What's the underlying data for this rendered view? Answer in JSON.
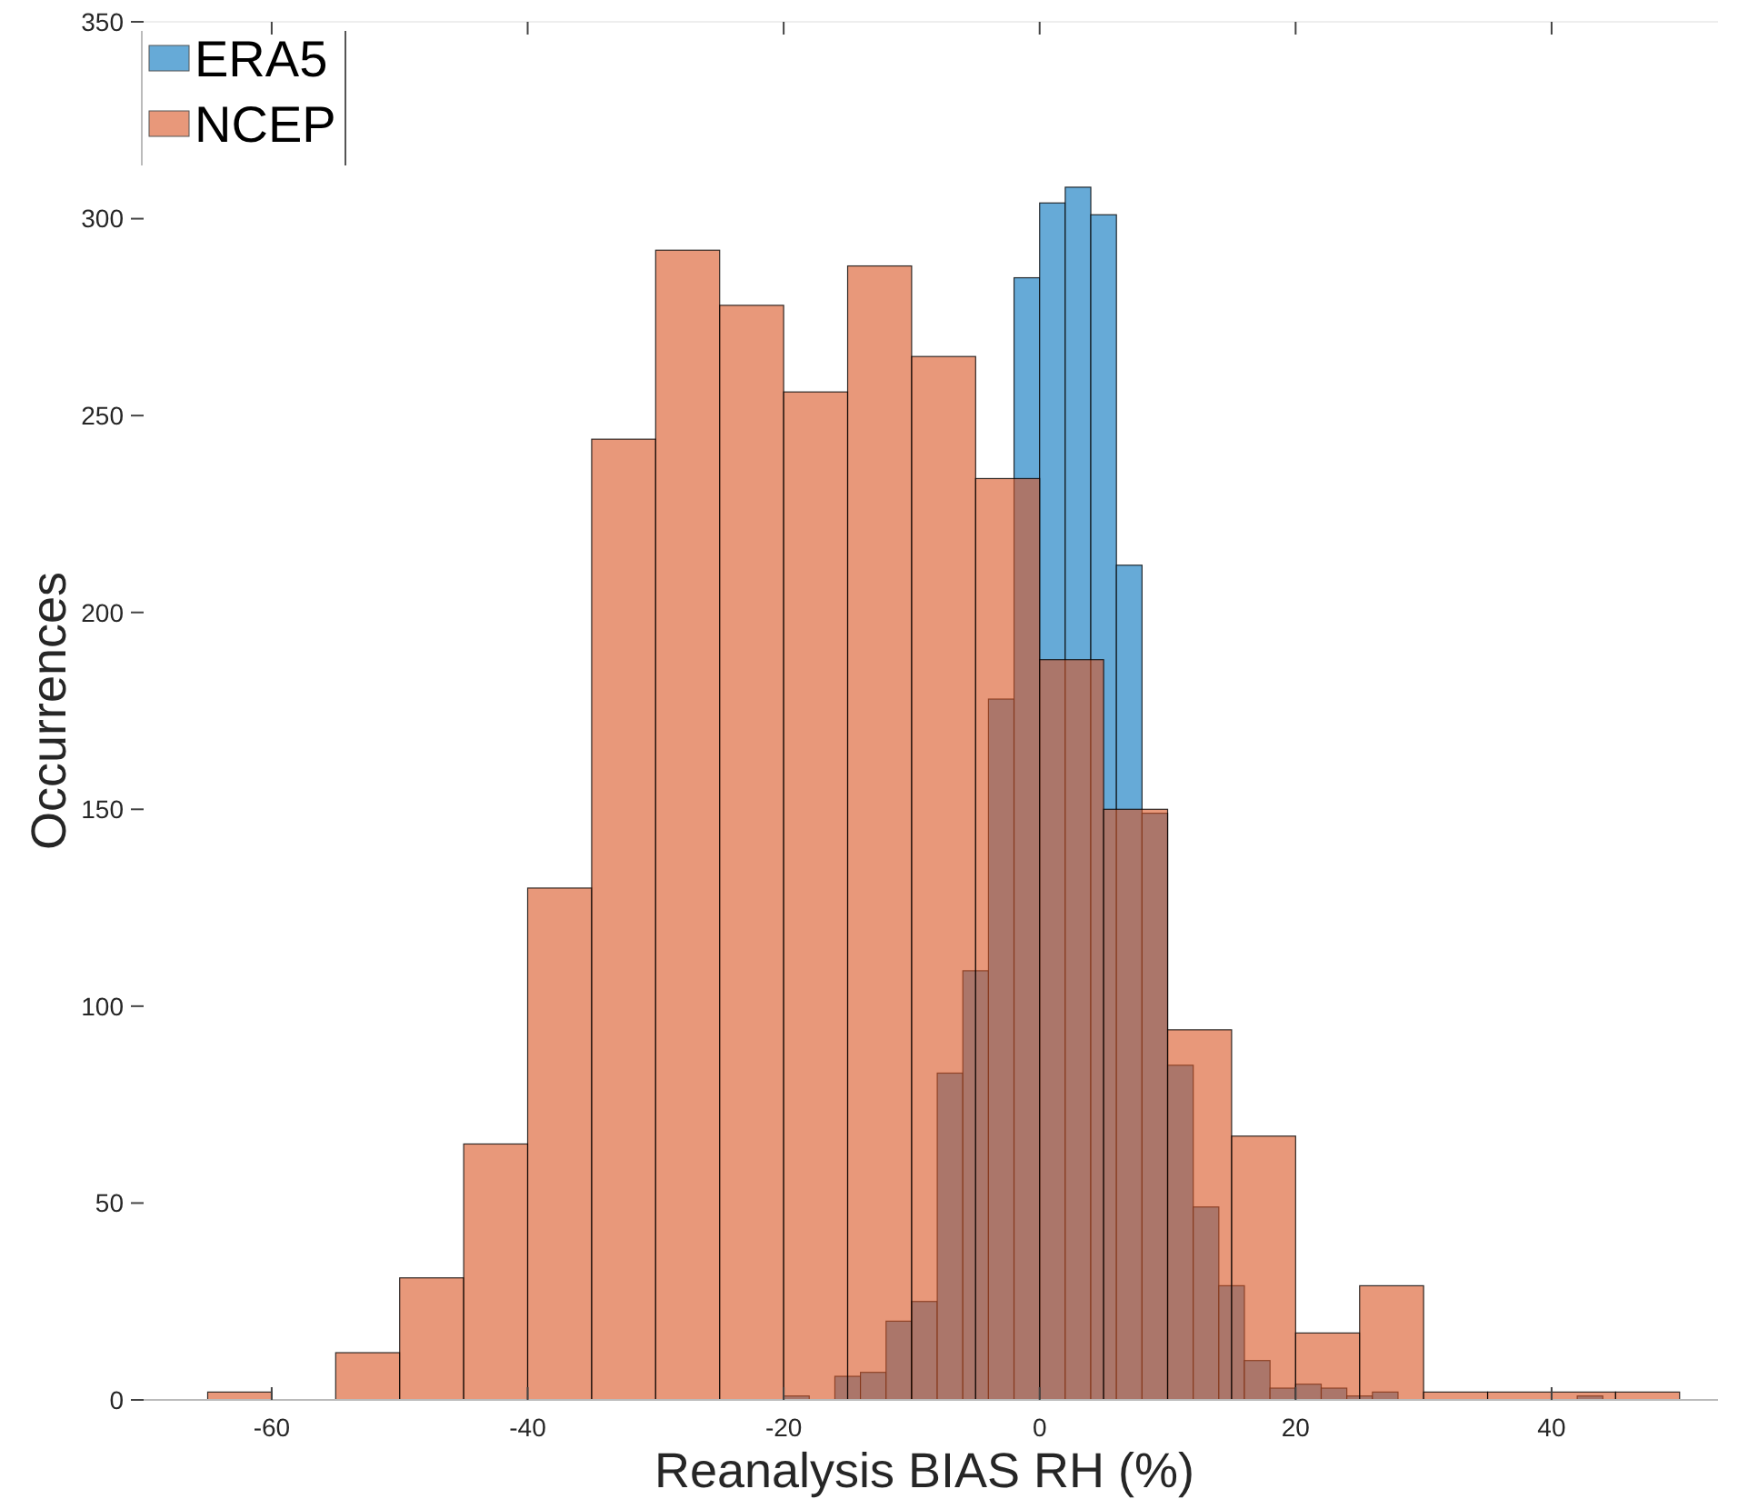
{
  "chart_data": {
    "type": "histogram",
    "xlabel": "Reanalysis BIAS RH (%)",
    "ylabel": "Occurrences",
    "xlim": [
      -71,
      53
    ],
    "xticks": [
      -60,
      -40,
      -20,
      0,
      20,
      40
    ],
    "ylim": [
      0,
      350
    ],
    "yticks": [
      0,
      50,
      100,
      150,
      200,
      250,
      300,
      350
    ],
    "legend": "top left",
    "grid": false,
    "bins": [
      -65,
      -60,
      -55,
      -50,
      -45,
      -40,
      -35,
      -30,
      -25,
      -20,
      -15,
      -10,
      -5,
      0,
      5,
      10,
      15,
      20,
      25,
      30,
      35,
      40,
      45,
      50
    ],
    "series": [
      {
        "name": "ERA5",
        "type": "bar",
        "color": "#66aad7",
        "x": [
          -19,
          -17,
          -15,
          -13,
          -11,
          -9,
          -7,
          -5,
          -3,
          -1,
          1,
          3,
          5,
          7,
          9,
          11,
          13,
          15,
          17,
          19,
          21,
          23,
          25,
          27,
          29,
          31,
          33,
          35,
          37,
          39,
          41,
          43
        ],
        "values": [
          1,
          0,
          6,
          7,
          20,
          25,
          83,
          109,
          178,
          285,
          304,
          308,
          301,
          212,
          149,
          85,
          49,
          29,
          10,
          3,
          4,
          3,
          1,
          2,
          0,
          0,
          0,
          0,
          0,
          0,
          0,
          1
        ]
      },
      {
        "name": "NCEP",
        "color": "#e8987a",
        "values": [
          2,
          0,
          12,
          31,
          65,
          130,
          244,
          292,
          278,
          256,
          288,
          265,
          234,
          188,
          150,
          94,
          67,
          17,
          29,
          2,
          2,
          2,
          2
        ]
      }
    ]
  }
}
